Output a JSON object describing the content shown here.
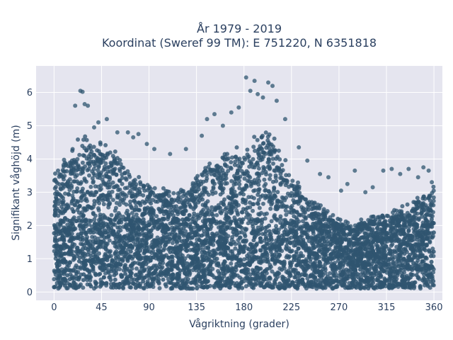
{
  "chart_data": {
    "type": "scatter",
    "title_line1": "År 1979 - 2019",
    "title_line2": "Koordinat (Sweref 99 TM): E 751220, N 6351818",
    "xlabel": "Vågriktning (grader)",
    "ylabel": "Signifikant våghöjd (m)",
    "xlim": [
      -17,
      368
    ],
    "ylim": [
      -0.25,
      6.8
    ],
    "xticks": [
      0,
      45,
      90,
      135,
      180,
      225,
      270,
      315,
      360
    ],
    "yticks": [
      0,
      1,
      2,
      3,
      4,
      5,
      6
    ],
    "grid": true,
    "marker_color": "#2f5570",
    "background_color": "#e5e5ef",
    "envelope": {
      "x": [
        0,
        10,
        20,
        30,
        45,
        60,
        75,
        90,
        105,
        120,
        135,
        150,
        165,
        180,
        195,
        205,
        215,
        225,
        240,
        255,
        270,
        285,
        300,
        315,
        330,
        345,
        360
      ],
      "y_max": [
        3.6,
        4.1,
        4.5,
        4.7,
        4.5,
        4.2,
        3.6,
        3.2,
        3.1,
        3.1,
        3.5,
        4.1,
        4.2,
        4.4,
        4.8,
        4.9,
        4.3,
        3.5,
        2.9,
        2.6,
        2.2,
        2.1,
        2.3,
        2.4,
        2.6,
        2.9,
        3.2
      ],
      "y_min": 0.1
    },
    "outliers": [
      [
        20,
        5.6
      ],
      [
        25,
        6.05
      ],
      [
        27,
        6.02
      ],
      [
        29,
        5.65
      ],
      [
        32,
        5.6
      ],
      [
        38,
        4.95
      ],
      [
        42,
        5.1
      ],
      [
        50,
        5.2
      ],
      [
        60,
        4.8
      ],
      [
        70,
        4.8
      ],
      [
        75,
        4.65
      ],
      [
        80,
        4.75
      ],
      [
        88,
        4.45
      ],
      [
        95,
        4.3
      ],
      [
        110,
        4.15
      ],
      [
        125,
        4.3
      ],
      [
        140,
        4.7
      ],
      [
        145,
        5.2
      ],
      [
        152,
        5.35
      ],
      [
        160,
        5.0
      ],
      [
        168,
        5.4
      ],
      [
        175,
        5.55
      ],
      [
        182,
        6.45
      ],
      [
        186,
        6.05
      ],
      [
        190,
        6.35
      ],
      [
        193,
        5.95
      ],
      [
        198,
        5.85
      ],
      [
        203,
        6.3
      ],
      [
        207,
        6.2
      ],
      [
        211,
        5.75
      ],
      [
        219,
        5.2
      ],
      [
        232,
        4.35
      ],
      [
        240,
        3.95
      ],
      [
        252,
        3.55
      ],
      [
        260,
        3.45
      ],
      [
        272,
        3.05
      ],
      [
        278,
        3.25
      ],
      [
        285,
        3.65
      ],
      [
        295,
        3.0
      ],
      [
        302,
        3.15
      ],
      [
        312,
        3.65
      ],
      [
        320,
        3.7
      ],
      [
        328,
        3.55
      ],
      [
        336,
        3.7
      ],
      [
        345,
        3.45
      ],
      [
        350,
        3.75
      ],
      [
        355,
        3.65
      ],
      [
        358,
        3.3
      ]
    ]
  }
}
